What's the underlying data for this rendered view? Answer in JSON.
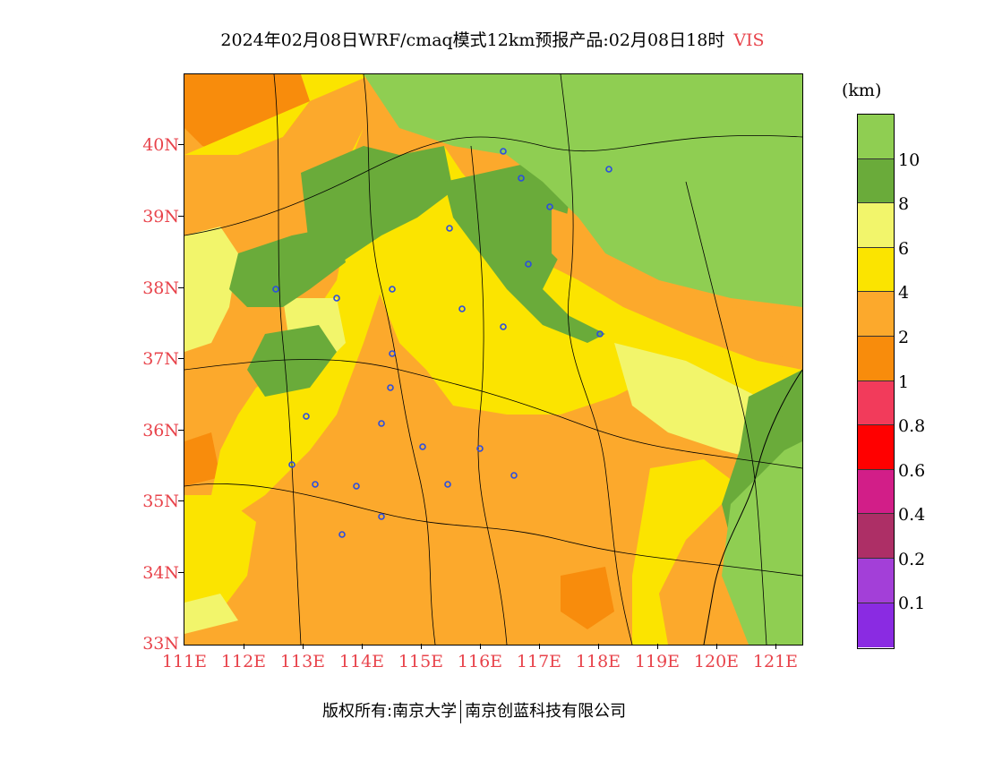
{
  "title": {
    "text": "2024年02月08日WRF/cmaq模式12km预报产品:02月08日18时",
    "variable": "VIS"
  },
  "map": {
    "lat_labels": [
      "40N",
      "39N",
      "38N",
      "37N",
      "36N",
      "35N",
      "34N",
      "33N"
    ],
    "lon_labels": [
      "111E",
      "112E",
      "113E",
      "114E",
      "115E",
      "116E",
      "117E",
      "118E",
      "119E",
      "120E",
      "121E"
    ]
  },
  "colorbar": {
    "unit": "(km)",
    "labels": [
      "10",
      "8",
      "6",
      "4",
      "2",
      "1",
      "0.8",
      "0.6",
      "0.4",
      "0.2",
      "0.1"
    ],
    "colors": [
      "#8fce52",
      "#6aab3a",
      "#f2f56b",
      "#fbe400",
      "#fca92c",
      "#f88c0c",
      "#f23b5b",
      "#ff0000",
      "#d21e88",
      "#ad2f66",
      "#a33fd8",
      "#8a2be2"
    ]
  },
  "legend_colors": {
    "vis_gt10": "#8fce52",
    "vis_8_10": "#6aab3a",
    "vis_6_8": "#f2f56b",
    "vis_4_6": "#fbe400",
    "vis_2_4": "#fca92c",
    "vis_1_2": "#f88c0c"
  },
  "stations": {
    "marker_color": "#2b4de0"
  },
  "footer": {
    "left": "版权所有:南京大学",
    "right": "南京创蓝科技有限公司"
  }
}
